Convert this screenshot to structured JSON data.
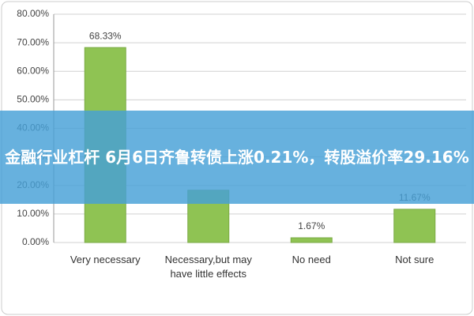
{
  "chart_data": {
    "type": "bar",
    "categories": [
      "Very necessary",
      "Necessary,but may have little effects",
      "No need",
      "Not sure"
    ],
    "values": [
      68.33,
      18.33,
      1.67,
      11.67
    ],
    "value_labels": [
      "68.33%",
      null,
      "1.67%",
      "11.67%"
    ],
    "color": "#8fc353",
    "ylim": [
      0,
      80
    ],
    "yticks": [
      {
        "value": 0,
        "label": "0.00%"
      },
      {
        "value": 10,
        "label": "10.00%"
      },
      {
        "value": 20,
        "label": "20.00%"
      },
      {
        "value": 30,
        "label": "30.00%"
      },
      {
        "value": 40,
        "label": "40.00%"
      },
      {
        "value": 50,
        "label": "50.00%"
      },
      {
        "value": 60,
        "label": "60.00%"
      },
      {
        "value": 70,
        "label": "70.00%"
      },
      {
        "value": 80,
        "label": "80.00%"
      }
    ],
    "grid": true
  },
  "banner": {
    "text": "金融行业杠杆 6月6日齐鲁转债上涨0.21%，转股溢价率29.16%"
  }
}
